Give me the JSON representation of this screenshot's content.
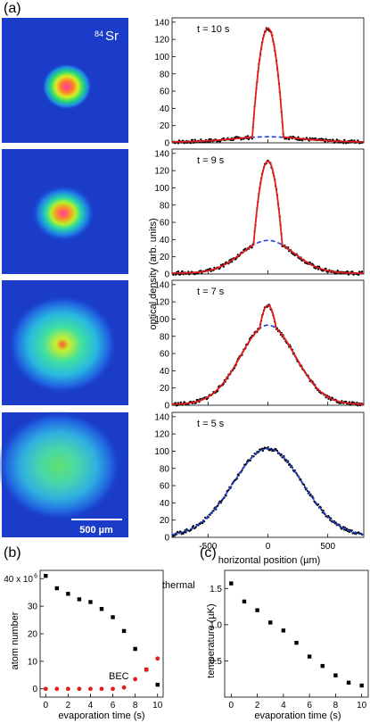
{
  "panel_labels": [
    "(a)",
    "(b)",
    "(c)"
  ],
  "colors": {
    "data_points": "#000000",
    "fit_total": "#e21b1b",
    "fit_thermal": "#1f3fd8",
    "bec_points": "#e21b1b",
    "image_background": "#1a3cc8"
  },
  "images": {
    "isotope_label_mass": "84",
    "isotope_label_element": "Sr",
    "scale_bar_label": "500 µm"
  },
  "chart_data": [
    {
      "type": "line",
      "panel": "a",
      "title": "",
      "xlabel": "horizontal position (µm)",
      "ylabel": "optical density (arb. units)",
      "xlim": [
        -800,
        800
      ],
      "x_ticks": [
        -500,
        0,
        500
      ],
      "ylim": [
        0,
        145
      ],
      "y_ticks": [
        0,
        20,
        40,
        60,
        80,
        100,
        120,
        140
      ],
      "subplots": [
        {
          "label": "t = 10 s",
          "total_peak": 132,
          "total_width": 130,
          "thermal_peak": 6,
          "thermal_width": 290,
          "baseline": 1,
          "fit_color": "red"
        },
        {
          "label": "t = 9 s",
          "total_peak": 130,
          "total_width": 120,
          "thermal_peak": 38,
          "thermal_width": 220,
          "baseline": 1,
          "fit_color": "red"
        },
        {
          "label": "t = 7 s",
          "total_peak": 115,
          "total_width": 70,
          "thermal_peak": 92,
          "thermal_width": 230,
          "baseline": 1,
          "fit_color": "red"
        },
        {
          "label": "t = 5 s",
          "total_peak": 102,
          "total_width": 0,
          "thermal_peak": 102,
          "thermal_width": 290,
          "baseline": 1,
          "fit_color": "blue"
        }
      ]
    },
    {
      "type": "scatter",
      "panel": "b",
      "xlabel": "evaporation time (s)",
      "ylabel": "atom number",
      "xlim": [
        -0.5,
        10.5
      ],
      "x_ticks": [
        0,
        2,
        4,
        6,
        8,
        10
      ],
      "ylim": [
        -3,
        43
      ],
      "y_ticks": [
        0,
        10,
        20,
        30
      ],
      "top_tick_label": "40 x 10",
      "top_tick_exp": "6",
      "series": [
        {
          "name": "thermal",
          "x": [
            0,
            1,
            2,
            3,
            4,
            5,
            6,
            7,
            8,
            9,
            10
          ],
          "y": [
            41,
            36.5,
            34.5,
            32.5,
            31.5,
            29,
            26,
            21,
            14.5,
            7,
            1.5
          ]
        },
        {
          "name": "BEC",
          "x": [
            0,
            1,
            2,
            3,
            4,
            5,
            6,
            7,
            8,
            9,
            10
          ],
          "y": [
            0,
            0,
            0,
            0,
            0,
            0,
            0,
            0.5,
            3.5,
            7,
            11
          ]
        }
      ]
    },
    {
      "type": "scatter",
      "panel": "c",
      "xlabel": "evaporation time (s)",
      "ylabel": "temperature (µK)",
      "xlim": [
        -0.5,
        10.5
      ],
      "x_ticks": [
        0,
        2,
        4,
        6,
        8,
        10
      ],
      "ylim": [
        0,
        1.75
      ],
      "y_ticks": [
        0.5,
        1.0,
        1.5
      ],
      "y_tick_labels": [
        "0.5",
        "1.0",
        "1.5"
      ],
      "series": [
        {
          "name": "",
          "x": [
            0,
            1,
            2,
            3,
            4,
            5,
            6,
            7,
            8,
            9,
            10
          ],
          "y": [
            1.57,
            1.32,
            1.2,
            1.03,
            0.92,
            0.75,
            0.56,
            0.43,
            0.3,
            0.2,
            0.16
          ]
        }
      ]
    }
  ]
}
